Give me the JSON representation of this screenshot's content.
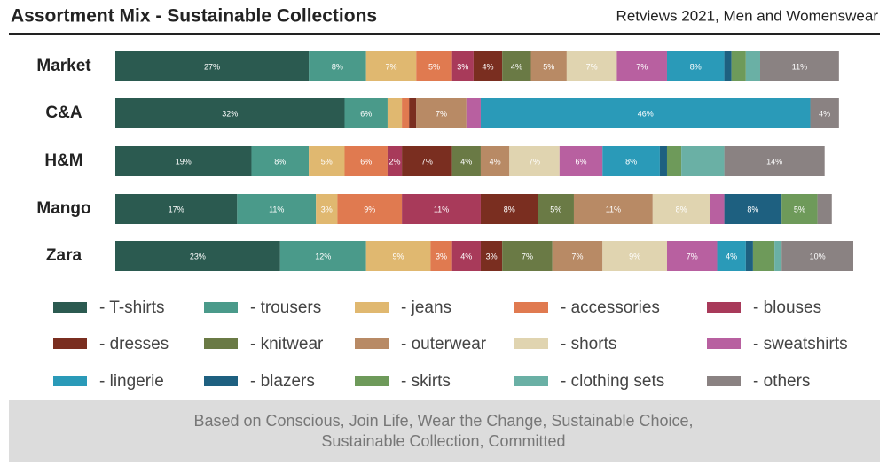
{
  "chart_data": {
    "type": "stacked-bar-horizontal",
    "title": "Assortment Mix - Sustainable Collections",
    "subtitle": "Retviews 2021, Men and Womenswear",
    "footnote": [
      "Based on Conscious, Join Life, Wear the Change, Sustainable Choice,",
      "Sustainable Collection, Committed"
    ],
    "categories": [
      "Market",
      "C&A",
      "H&M",
      "Mango",
      "Zara"
    ],
    "xlim": [
      0,
      103
    ],
    "series": [
      {
        "name": "- T-shirts",
        "color": "#2b5a50",
        "values": [
          27,
          32,
          19,
          17,
          23
        ],
        "value_labels": [
          "27%",
          "32%",
          "19%",
          "17%",
          "23%"
        ]
      },
      {
        "name": "- trousers",
        "color": "#4a9a8a",
        "values": [
          8,
          6,
          8,
          11,
          12
        ],
        "value_labels": [
          "8%",
          "6%",
          "8%",
          "11%",
          "12%"
        ]
      },
      {
        "name": "- jeans",
        "color": "#e0b870",
        "values": [
          7,
          2,
          5,
          3,
          9
        ],
        "value_labels": [
          "7%",
          null,
          "5%",
          "3%",
          "9%"
        ]
      },
      {
        "name": "- accessories",
        "color": "#e07a50",
        "values": [
          5,
          1,
          6,
          9,
          3
        ],
        "value_labels": [
          "5%",
          null,
          "6%",
          "9%",
          "3%"
        ]
      },
      {
        "name": "- blouses",
        "color": "#a83a5a",
        "values": [
          3,
          0,
          2,
          11,
          4
        ],
        "value_labels": [
          "3%",
          null,
          "2%",
          "11%",
          "4%"
        ]
      },
      {
        "name": "- dresses",
        "color": "#7a2e20",
        "values": [
          4,
          1,
          7,
          8,
          3
        ],
        "value_labels": [
          "4%",
          null,
          "7%",
          "8%",
          "3%"
        ]
      },
      {
        "name": "- knitwear",
        "color": "#6a7a45",
        "values": [
          4,
          0,
          4,
          5,
          7
        ],
        "value_labels": [
          "4%",
          null,
          "4%",
          "5%",
          "7%"
        ]
      },
      {
        "name": "- outerwear",
        "color": "#b88a65",
        "values": [
          5,
          7,
          4,
          11,
          7
        ],
        "value_labels": [
          "5%",
          "7%",
          "4%",
          "11%",
          "7%"
        ]
      },
      {
        "name": "- shorts",
        "color": "#e0d4b0",
        "values": [
          7,
          0,
          7,
          8,
          9
        ],
        "value_labels": [
          "7%",
          null,
          "7%",
          "8%",
          "9%"
        ]
      },
      {
        "name": "- sweatshirts",
        "color": "#b860a0",
        "values": [
          7,
          2,
          6,
          2,
          7
        ],
        "value_labels": [
          "7%",
          null,
          "6%",
          null,
          "7%"
        ]
      },
      {
        "name": "- lingerie",
        "color": "#2a9ab8",
        "values": [
          8,
          46,
          8,
          0,
          4
        ],
        "value_labels": [
          "8%",
          "46%",
          "8%",
          null,
          "4%"
        ]
      },
      {
        "name": "- blazers",
        "color": "#1e6080",
        "values": [
          1,
          0,
          1,
          8,
          1
        ],
        "value_labels": [
          null,
          null,
          null,
          "8%",
          null
        ]
      },
      {
        "name": "- skirts",
        "color": "#6e9a5a",
        "values": [
          2,
          0,
          2,
          5,
          3
        ],
        "value_labels": [
          null,
          null,
          null,
          "5%",
          null
        ]
      },
      {
        "name": "- clothing sets",
        "color": "#6ab0a5",
        "values": [
          2,
          0,
          6,
          0,
          1
        ],
        "value_labels": [
          null,
          null,
          null,
          null,
          null
        ]
      },
      {
        "name": "- others",
        "color": "#8a8282",
        "values": [
          11,
          4,
          14,
          2,
          10
        ],
        "value_labels": [
          "11%",
          "4%",
          "14%",
          null,
          "10%"
        ]
      }
    ]
  }
}
